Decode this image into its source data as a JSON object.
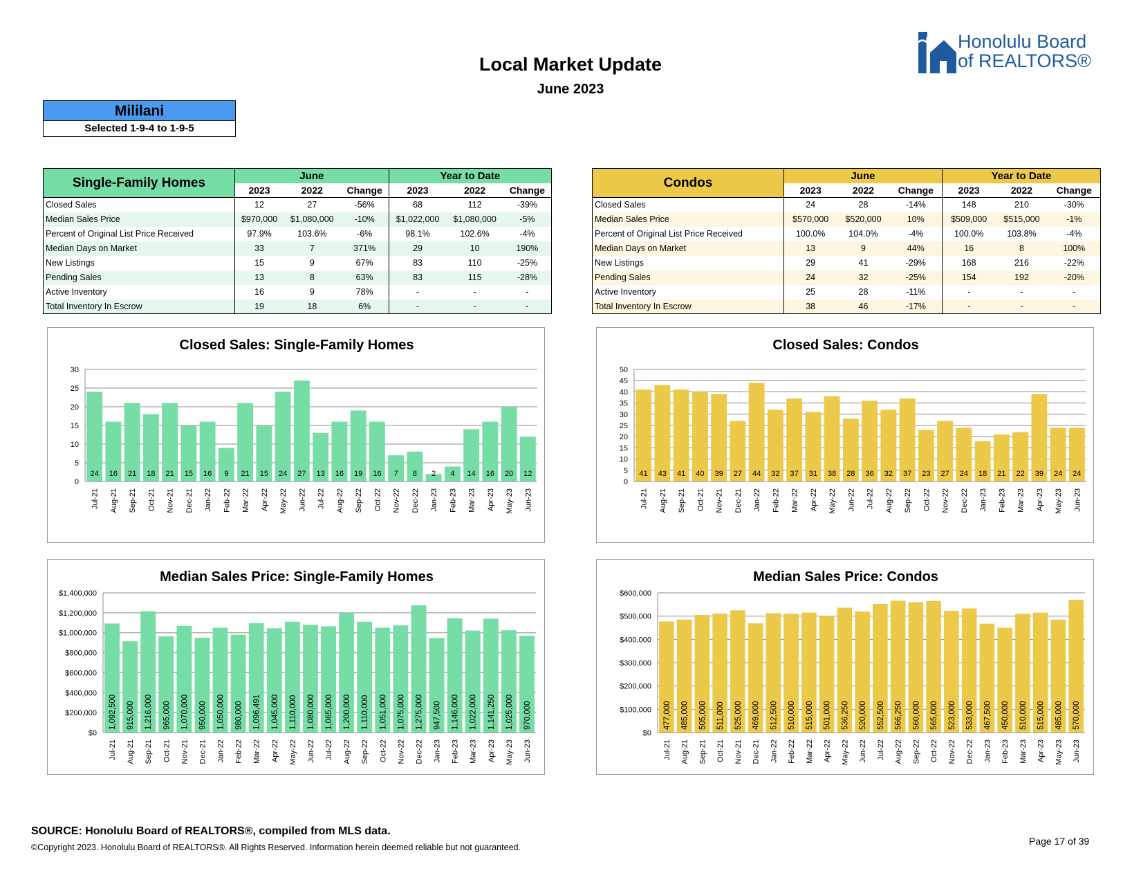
{
  "header": {
    "title": "Local Market Update",
    "subtitle": "June 2023",
    "logo_line1": "Honolulu Board",
    "logo_line2": "of REALTORS®"
  },
  "area": {
    "name": "Mililani",
    "selection": "Selected 1-9-4 to 1-9-5"
  },
  "colors": {
    "sfr": "#77dda6",
    "condo": "#edc94a",
    "area": "#4a9af0",
    "logo": "#1f5a9f"
  },
  "sfr_table": {
    "category": "Single-Family Homes",
    "group_month": "June",
    "group_ytd": "Year to Date",
    "col_headers": [
      "2023",
      "2022",
      "Change",
      "2023",
      "2022",
      "Change"
    ],
    "rows": [
      {
        "label": "Closed Sales",
        "values": [
          "12",
          "27",
          "-56%",
          "68",
          "112",
          "-39%"
        ]
      },
      {
        "label": "Median Sales Price",
        "values": [
          "$970,000",
          "$1,080,000",
          "-10%",
          "$1,022,000",
          "$1,080,000",
          "-5%"
        ]
      },
      {
        "label": "Percent of Original List Price Received",
        "values": [
          "97.9%",
          "103.6%",
          "-6%",
          "98.1%",
          "102.6%",
          "-4%"
        ]
      },
      {
        "label": "Median Days on Market",
        "values": [
          "33",
          "7",
          "371%",
          "29",
          "10",
          "190%"
        ]
      },
      {
        "label": "New Listings",
        "values": [
          "15",
          "9",
          "67%",
          "83",
          "110",
          "-25%"
        ]
      },
      {
        "label": "Pending Sales",
        "values": [
          "13",
          "8",
          "63%",
          "83",
          "115",
          "-28%"
        ]
      },
      {
        "label": "Active Inventory",
        "values": [
          "16",
          "9",
          "78%",
          "-",
          "-",
          "-"
        ]
      },
      {
        "label": "Total Inventory In Escrow",
        "values": [
          "19",
          "18",
          "6%",
          "-",
          "-",
          "-"
        ]
      }
    ]
  },
  "condo_table": {
    "category": "Condos",
    "group_month": "June",
    "group_ytd": "Year to Date",
    "col_headers": [
      "2023",
      "2022",
      "Change",
      "2023",
      "2022",
      "Change"
    ],
    "rows": [
      {
        "label": "Closed Sales",
        "values": [
          "24",
          "28",
          "-14%",
          "148",
          "210",
          "-30%"
        ]
      },
      {
        "label": "Median Sales Price",
        "values": [
          "$570,000",
          "$520,000",
          "10%",
          "$509,000",
          "$515,000",
          "-1%"
        ]
      },
      {
        "label": "Percent of Original List Price Received",
        "values": [
          "100.0%",
          "104.0%",
          "-4%",
          "100.0%",
          "103.8%",
          "-4%"
        ]
      },
      {
        "label": "Median Days on Market",
        "values": [
          "13",
          "9",
          "44%",
          "16",
          "8",
          "100%"
        ]
      },
      {
        "label": "New Listings",
        "values": [
          "29",
          "41",
          "-29%",
          "168",
          "216",
          "-22%"
        ]
      },
      {
        "label": "Pending Sales",
        "values": [
          "24",
          "32",
          "-25%",
          "154",
          "192",
          "-20%"
        ]
      },
      {
        "label": "Active Inventory",
        "values": [
          "25",
          "28",
          "-11%",
          "-",
          "-",
          "-"
        ]
      },
      {
        "label": "Total Inventory In Escrow",
        "values": [
          "38",
          "46",
          "-17%",
          "-",
          "-",
          "-"
        ]
      }
    ]
  },
  "chart_data": [
    {
      "id": "sfr-closed",
      "type": "bar",
      "title": "Closed Sales: Single-Family Homes",
      "categories": [
        "Jul-21",
        "Aug-21",
        "Sep-21",
        "Oct-21",
        "Nov-21",
        "Dec-21",
        "Jan-22",
        "Feb-22",
        "Mar-22",
        "Apr-22",
        "May-22",
        "Jun-22",
        "Jul-22",
        "Aug-22",
        "Sep-22",
        "Oct-22",
        "Nov-22",
        "Dec-22",
        "Jan-23",
        "Feb-23",
        "Mar-23",
        "Apr-23",
        "May-23",
        "Jun-23"
      ],
      "values": [
        24,
        16,
        21,
        18,
        21,
        15,
        16,
        9,
        21,
        15,
        24,
        27,
        13,
        16,
        19,
        16,
        7,
        8,
        2,
        4,
        14,
        16,
        20,
        12
      ],
      "data_labels": [
        "24",
        "16",
        "21",
        "18",
        "21",
        "15",
        "16",
        "9",
        "21",
        "15",
        "24",
        "27",
        "13",
        "16",
        "19",
        "16",
        "7",
        "8",
        "2",
        "4",
        "14",
        "16",
        "20",
        "12"
      ],
      "ylim": [
        0,
        30
      ],
      "yticks": [
        0,
        5,
        10,
        15,
        20,
        25,
        30
      ],
      "ytick_labels": [
        "0",
        "5",
        "10",
        "15",
        "20",
        "25",
        "30"
      ],
      "label_position": "bottom",
      "color": "#77dda6"
    },
    {
      "id": "condo-closed",
      "type": "bar",
      "title": "Closed Sales: Condos",
      "categories": [
        "Jul-21",
        "Aug-21",
        "Sep-21",
        "Oct-21",
        "Nov-21",
        "Dec-21",
        "Jan-22",
        "Feb-22",
        "Mar-22",
        "Apr-22",
        "May-22",
        "Jun-22",
        "Jul-22",
        "Aug-22",
        "Sep-22",
        "Oct-22",
        "Nov-22",
        "Dec-22",
        "Jan-23",
        "Feb-23",
        "Mar-23",
        "Apr-23",
        "May-23",
        "Jun-23"
      ],
      "values": [
        41,
        43,
        41,
        40,
        39,
        27,
        44,
        32,
        37,
        31,
        38,
        28,
        36,
        32,
        37,
        23,
        27,
        24,
        18,
        21,
        22,
        39,
        24,
        24
      ],
      "data_labels": [
        "41",
        "43",
        "41",
        "40",
        "39",
        "27",
        "44",
        "32",
        "37",
        "31",
        "38",
        "28",
        "36",
        "32",
        "37",
        "23",
        "27",
        "24",
        "18",
        "21",
        "22",
        "39",
        "24",
        "24"
      ],
      "ylim": [
        0,
        50
      ],
      "yticks": [
        0,
        5,
        10,
        15,
        20,
        25,
        30,
        35,
        40,
        45,
        50
      ],
      "ytick_labels": [
        "0",
        "5",
        "10",
        "15",
        "20",
        "25",
        "30",
        "35",
        "40",
        "45",
        "50"
      ],
      "label_position": "bottom",
      "color": "#edc94a"
    },
    {
      "id": "sfr-price",
      "type": "bar",
      "title": "Median Sales Price: Single-Family Homes",
      "categories": [
        "Jul-21",
        "Aug-21",
        "Sep-21",
        "Oct-21",
        "Nov-21",
        "Dec-21",
        "Jan-22",
        "Feb-22",
        "Mar-22",
        "Apr-22",
        "May-22",
        "Jun-22",
        "Jul-22",
        "Aug-22",
        "Sep-22",
        "Oct-22",
        "Nov-22",
        "Dec-22",
        "Jan-23",
        "Feb-23",
        "Mar-23",
        "Apr-23",
        "May-23",
        "Jun-23"
      ],
      "values": [
        1092500,
        915000,
        1216000,
        965000,
        1070000,
        950000,
        1050000,
        980000,
        1096491,
        1045000,
        1110000,
        1080000,
        1065000,
        1200000,
        1110000,
        1051000,
        1075000,
        1275000,
        947500,
        1146000,
        1022000,
        1141250,
        1025000,
        970000
      ],
      "data_labels": [
        "1,092,500",
        "915,000",
        "1,216,000",
        "965,000",
        "1,070,000",
        "950,000",
        "1,050,000",
        "980,000",
        "1,096,491",
        "1,045,000",
        "1,110,000",
        "1,080,000",
        "1,065,000",
        "1,200,000",
        "1,110,000",
        "1,051,000",
        "1,075,000",
        "1,275,000",
        "947,500",
        "1,146,000",
        "1,022,000",
        "1,141,250",
        "1,025,000",
        "970,000"
      ],
      "ylim": [
        0,
        1400000
      ],
      "yticks": [
        0,
        200000,
        400000,
        600000,
        800000,
        1000000,
        1200000,
        1400000
      ],
      "ytick_labels": [
        "$0",
        "$200,000",
        "$400,000",
        "$600,000",
        "$800,000",
        "$1,000,000",
        "$1,200,000",
        "$1,400,000"
      ],
      "label_position": "vertical",
      "color": "#77dda6"
    },
    {
      "id": "condo-price",
      "type": "bar",
      "title": "Median Sales Price: Condos",
      "categories": [
        "Jul-21",
        "Aug-21",
        "Sep-21",
        "Oct-21",
        "Nov-21",
        "Dec-21",
        "Jan-22",
        "Feb-22",
        "Mar-22",
        "Apr-22",
        "May-22",
        "Jun-22",
        "Jul-22",
        "Aug-22",
        "Sep-22",
        "Oct-22",
        "Nov-22",
        "Dec-22",
        "Jan-23",
        "Feb-23",
        "Mar-23",
        "Apr-23",
        "May-23",
        "Jun-23"
      ],
      "values": [
        477000,
        485000,
        505000,
        511000,
        525000,
        469000,
        512500,
        510000,
        515000,
        501000,
        536250,
        520000,
        552500,
        566250,
        560000,
        565000,
        523000,
        533000,
        467500,
        450000,
        510000,
        515000,
        485000,
        570000
      ],
      "data_labels": [
        "477,000",
        "485,000",
        "505,000",
        "511,000",
        "525,000",
        "469,000",
        "512,500",
        "510,000",
        "515,000",
        "501,000",
        "536,250",
        "520,000",
        "552,500",
        "566,250",
        "560,000",
        "565,000",
        "523,000",
        "533,000",
        "467,500",
        "450,000",
        "510,000",
        "515,000",
        "485,000",
        "570,000"
      ],
      "ylim": [
        0,
        600000
      ],
      "yticks": [
        0,
        100000,
        200000,
        300000,
        400000,
        500000,
        600000
      ],
      "ytick_labels": [
        "$0",
        "$100,000",
        "$200,000",
        "$300,000",
        "$400,000",
        "$500,000",
        "$600,000"
      ],
      "label_position": "vertical",
      "color": "#edc94a"
    }
  ],
  "footer": {
    "source": "SOURCE: Honolulu Board of REALTORS®, compiled from MLS data.",
    "copyright": "©Copyright 2023. Honolulu Board of REALTORS®. All Rights Reserved. Information herein deemed reliable but not guaranteed.",
    "page": "Page 17 of 39"
  }
}
